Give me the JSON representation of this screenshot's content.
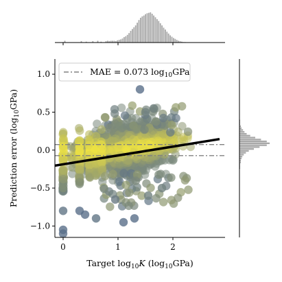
{
  "chart_data": {
    "type": "scatter",
    "title": "",
    "xlabel": "Target log₁₀K (log₁₀GPa)",
    "xlabel_parts": {
      "pre": "Target log",
      "sub": "10",
      "var": "K",
      "post": " (log",
      "sub2": "10",
      "post2": "GPa)"
    },
    "ylabel_parts": {
      "pre": "Prediction error (log",
      "sub": "10",
      "post": "GPa)"
    },
    "xlim": [
      -0.15,
      2.95
    ],
    "ylim": [
      -1.15,
      1.2
    ],
    "x_ticks": [
      0,
      1,
      2
    ],
    "y_ticks": [
      -1.0,
      -0.5,
      0.0,
      0.5,
      1.0
    ],
    "x_tick_labels": [
      "0",
      "1",
      "2"
    ],
    "y_tick_labels": [
      "−1.0",
      "−0.5",
      "0.0",
      "0.5",
      "1.0"
    ],
    "legend": {
      "label": "MAE = 0.073 log",
      "sub": "10",
      "unit": "GPa",
      "location": "upper-left"
    },
    "mae": 0.073,
    "mae_lines_y": [
      0.073,
      -0.073
    ],
    "fit_line": {
      "x": [
        -0.15,
        2.85
      ],
      "y": [
        -0.205,
        0.145
      ]
    },
    "colors": {
      "dense": "#f0e442",
      "sparse": "#52698e",
      "fit": "#000000",
      "mae": "#808080",
      "hist": "#a8a8a8"
    },
    "point_clusters": [
      {
        "x": 0.0,
        "y": -1.05,
        "density": 0.05
      },
      {
        "x": 0.0,
        "y": -1.1,
        "density": 0.05
      },
      {
        "x": 0.0,
        "y": -0.8,
        "density": 0.1
      },
      {
        "x": 0.0,
        "y": -0.5,
        "density": 0.3
      },
      {
        "x": 0.0,
        "y": 0.05,
        "density": 0.9
      },
      {
        "x": 0.3,
        "y": -0.8,
        "density": 0.05
      },
      {
        "x": 0.4,
        "y": -0.85,
        "density": 0.05
      },
      {
        "x": 0.6,
        "y": -0.9,
        "density": 0.1
      },
      {
        "x": 0.95,
        "y": -0.65,
        "density": 0.15
      },
      {
        "x": 1.1,
        "y": -0.95,
        "density": 0.05
      },
      {
        "x": 1.3,
        "y": -0.9,
        "density": 0.05
      },
      {
        "x": 1.4,
        "y": 0.8,
        "density": 0.05
      },
      {
        "x": 1.5,
        "y": 0.5,
        "density": 0.2
      },
      {
        "x": 1.55,
        "y": -0.6,
        "density": 0.2
      },
      {
        "x": 1.65,
        "y": 0.55,
        "density": 0.2
      },
      {
        "x": 1.8,
        "y": -0.5,
        "density": 0.2
      }
    ],
    "top_histogram": {
      "bin_start": -0.1,
      "bin_width": 0.03,
      "counts": [
        0,
        0,
        0,
        0,
        4,
        0,
        0,
        0,
        0,
        0,
        0,
        0,
        0,
        0,
        3,
        0,
        0,
        2,
        0,
        0,
        0,
        3,
        0,
        0,
        4,
        0,
        2,
        0,
        0,
        3,
        4,
        3,
        4,
        4,
        4,
        3,
        5,
        6,
        7,
        9,
        12,
        14,
        17,
        21,
        26,
        30,
        34,
        38,
        44,
        50,
        55,
        58,
        60,
        63,
        65,
        66,
        67,
        64,
        60,
        56,
        52,
        48,
        43,
        38,
        33,
        29,
        24,
        20,
        16,
        13,
        10,
        8,
        6,
        4,
        3,
        2,
        1,
        1,
        0,
        0
      ]
    },
    "right_histogram": {
      "bin_start": -1.15,
      "bin_width": 0.025,
      "counts": [
        0,
        0,
        0,
        0,
        0,
        0,
        0,
        0,
        0,
        0,
        0,
        0,
        0,
        0,
        0,
        0,
        0,
        0,
        0,
        0,
        0,
        0,
        0,
        0,
        0,
        0,
        0,
        0,
        0,
        0,
        0,
        0,
        0,
        0,
        0,
        0,
        1,
        1,
        1,
        2,
        2,
        3,
        4,
        6,
        9,
        13,
        20,
        28,
        38,
        42,
        38,
        30,
        22,
        15,
        10,
        7,
        5,
        3,
        2,
        1,
        1,
        1,
        0,
        0,
        0,
        0,
        0,
        0,
        0,
        0,
        0,
        0,
        0,
        0,
        0,
        0,
        0,
        0,
        0,
        0,
        0,
        0,
        0,
        0,
        0,
        0,
        0,
        0,
        0,
        0,
        0,
        0,
        0,
        0
      ]
    }
  }
}
